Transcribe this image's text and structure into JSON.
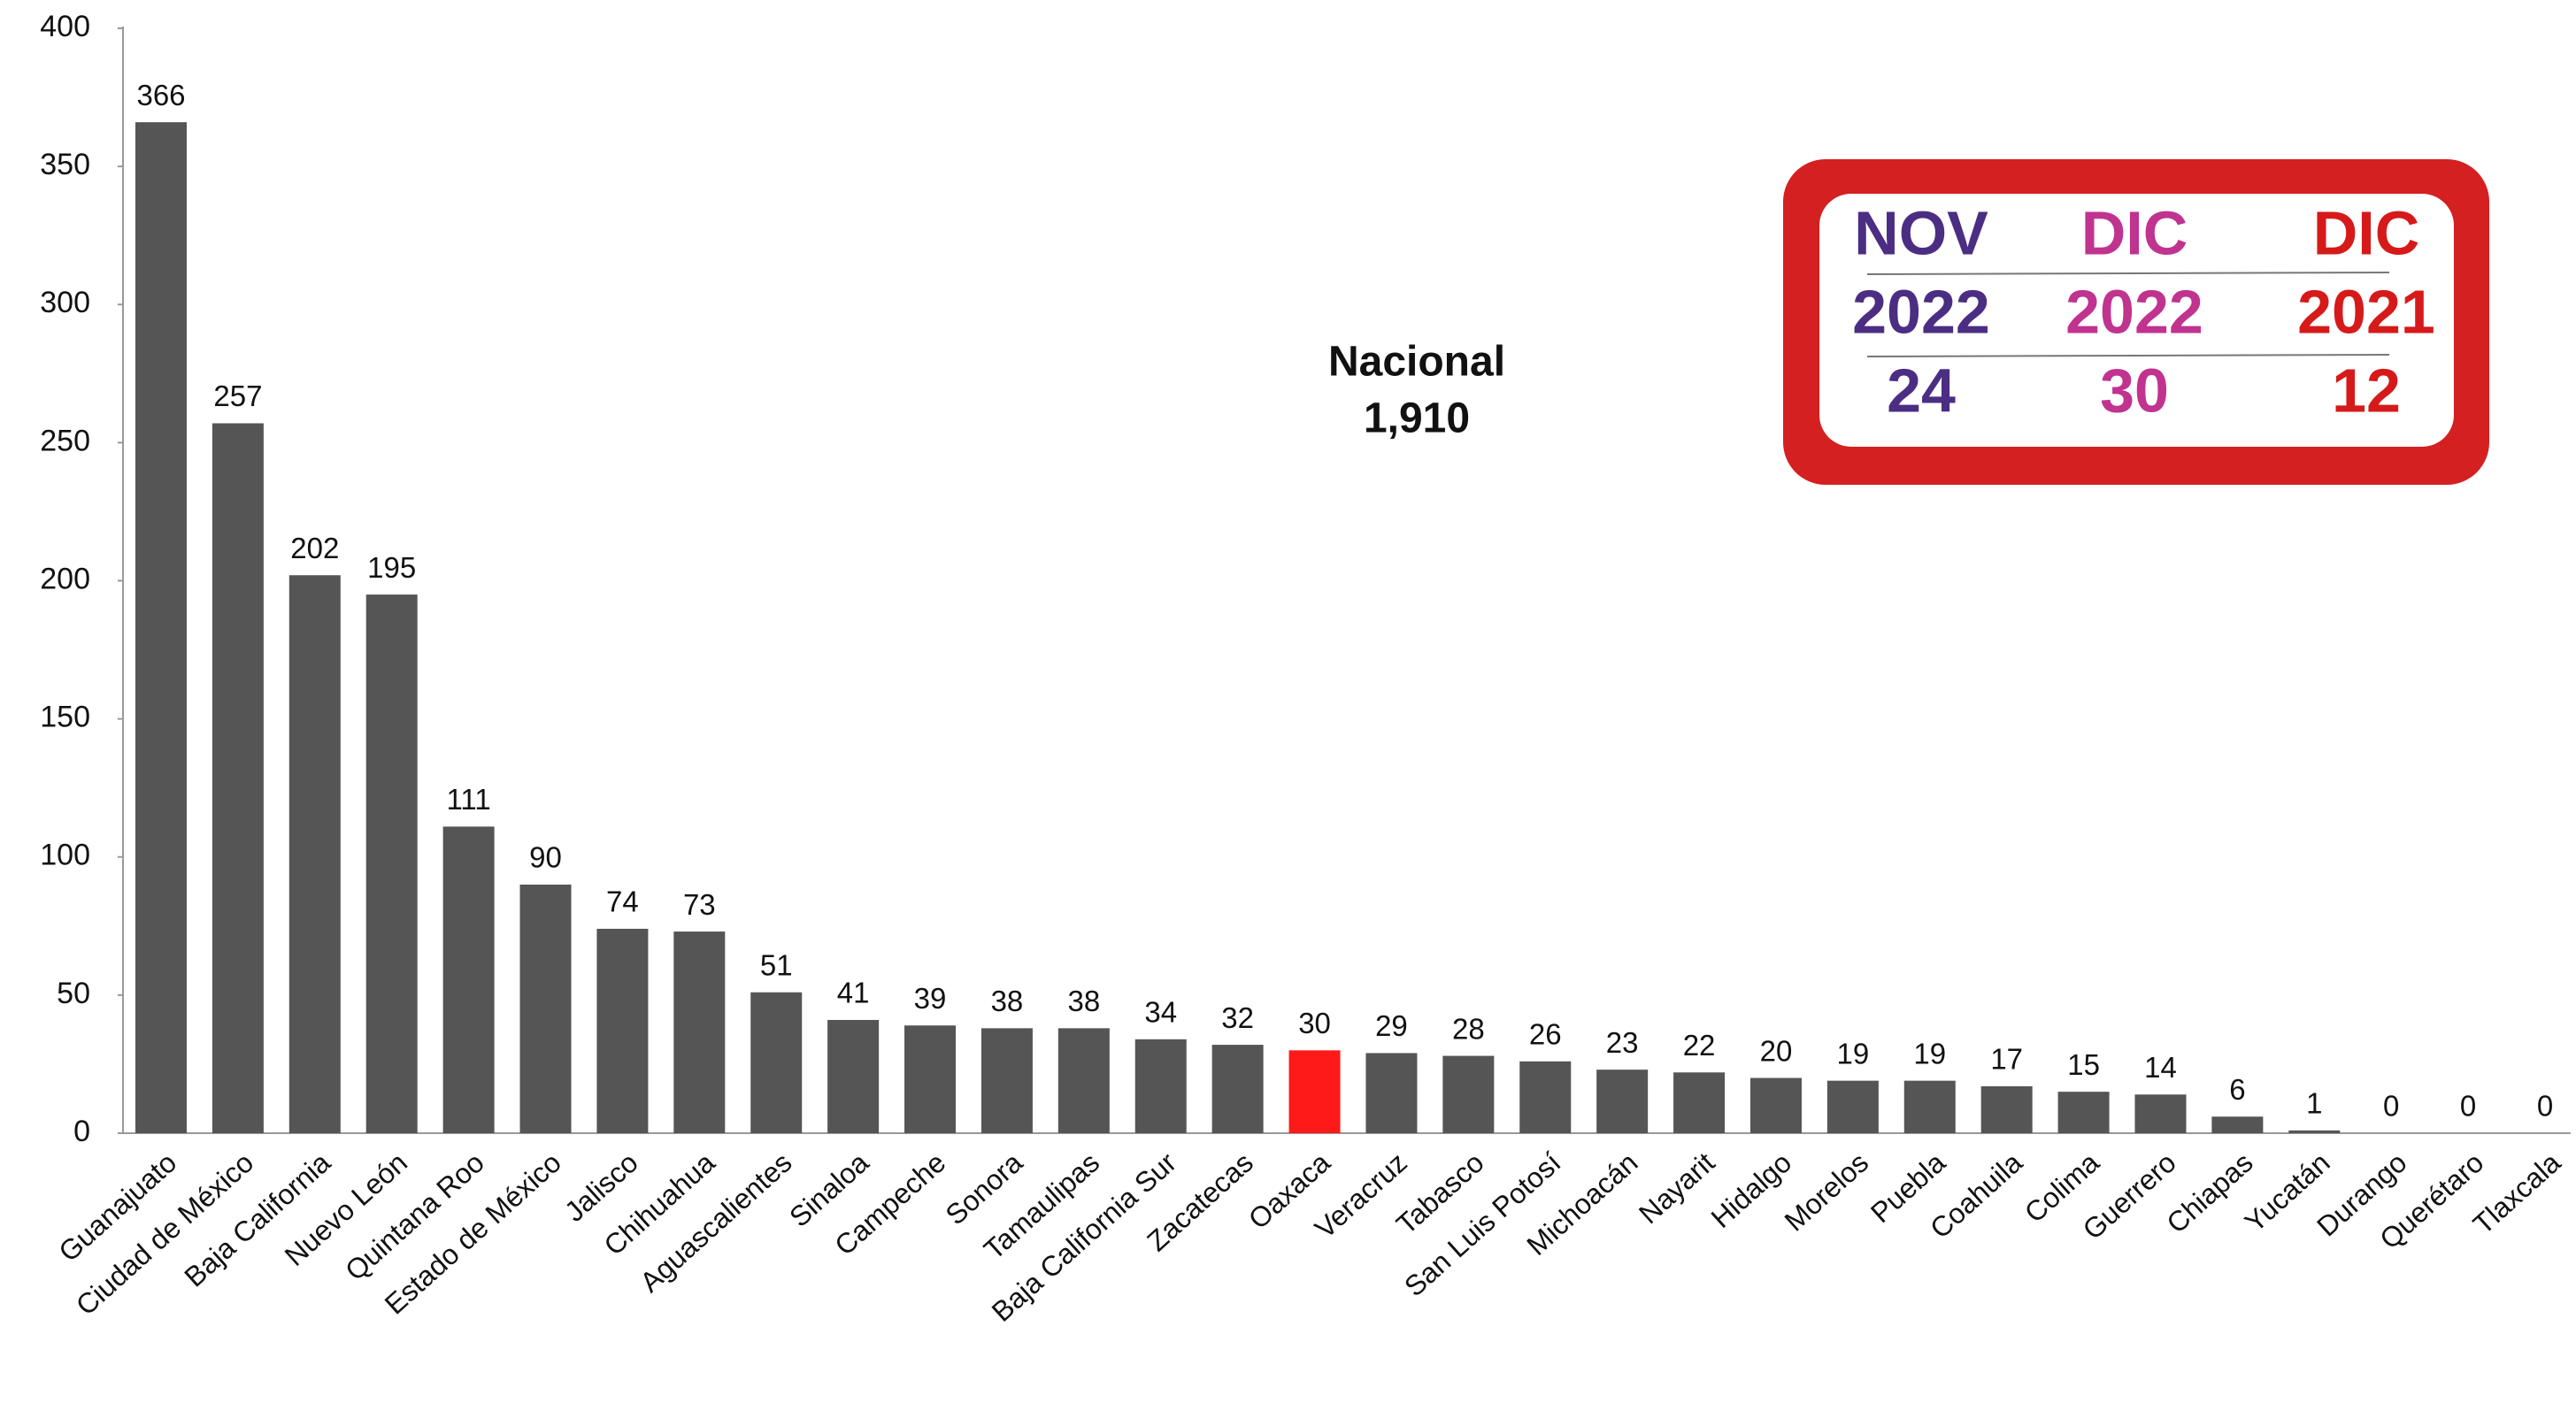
{
  "chart_data": {
    "type": "bar",
    "categories": [
      "Guanajuato",
      "Ciudad de México",
      "Baja California",
      "Nuevo León",
      "Quintana Roo",
      "Estado de México",
      "Jalisco",
      "Chihuahua",
      "Aguascalientes",
      "Sinaloa",
      "Campeche",
      "Sonora",
      "Tamaulipas",
      "Baja California Sur",
      "Zacatecas",
      "Oaxaca",
      "Veracruz",
      "Tabasco",
      "San Luis Potosí",
      "Michoacán",
      "Nayarit",
      "Hidalgo",
      "Morelos",
      "Puebla",
      "Coahuila",
      "Colima",
      "Guerrero",
      "Chiapas",
      "Yucatán",
      "Durango",
      "Querétaro",
      "Tlaxcala"
    ],
    "values": [
      366,
      257,
      202,
      195,
      111,
      90,
      74,
      73,
      51,
      41,
      39,
      38,
      38,
      34,
      32,
      30,
      29,
      28,
      26,
      23,
      22,
      20,
      19,
      19,
      17,
      15,
      14,
      6,
      1,
      0,
      0,
      0
    ],
    "colors": [
      "#555555",
      "#555555",
      "#555555",
      "#555555",
      "#555555",
      "#555555",
      "#555555",
      "#555555",
      "#555555",
      "#555555",
      "#555555",
      "#555555",
      "#555555",
      "#555555",
      "#555555",
      "#ff1a1a",
      "#555555",
      "#555555",
      "#555555",
      "#555555",
      "#555555",
      "#555555",
      "#555555",
      "#555555",
      "#555555",
      "#555555",
      "#555555",
      "#555555",
      "#555555",
      "#555555",
      "#555555",
      "#555555"
    ],
    "ylim": [
      0,
      400
    ],
    "yticks": [
      0,
      50,
      100,
      150,
      200,
      250,
      300,
      350,
      400
    ],
    "grid": false,
    "annotation": [
      "Nacional",
      "1,910"
    ],
    "inset": [
      {
        "month": "NOV",
        "year": "2022",
        "value": 24,
        "color": "#4b2e83"
      },
      {
        "month": "DIC",
        "year": "2022",
        "value": 30,
        "color": "#c0338f"
      },
      {
        "month": "DIC",
        "year": "2021",
        "value": 12,
        "color": "#d61a1a"
      }
    ]
  }
}
